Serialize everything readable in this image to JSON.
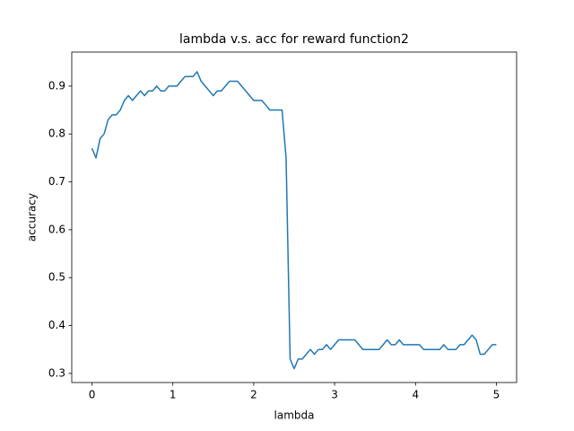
{
  "chart_data": {
    "type": "line",
    "title": "lambda v.s. acc for reward function2",
    "x_label": "lambda",
    "y_label": "accuracy",
    "x": [
      0,
      0.05,
      0.1,
      0.15,
      0.2,
      0.25,
      0.3,
      0.35,
      0.4,
      0.45,
      0.5,
      0.55,
      0.6,
      0.65,
      0.7,
      0.75,
      0.8,
      0.85,
      0.9,
      0.95,
      1,
      1.05,
      1.1,
      1.15,
      1.2,
      1.25,
      1.3,
      1.35,
      1.4,
      1.45,
      1.5,
      1.55,
      1.6,
      1.65,
      1.7,
      1.75,
      1.8,
      1.85,
      1.9,
      1.95,
      2,
      2.05,
      2.1,
      2.15,
      2.2,
      2.25,
      2.3,
      2.35,
      2.4,
      2.45,
      2.5,
      2.55,
      2.6,
      2.65,
      2.7,
      2.75,
      2.8,
      2.85,
      2.9,
      2.95,
      3,
      3.05,
      3.1,
      3.15,
      3.2,
      3.25,
      3.3,
      3.35,
      3.4,
      3.45,
      3.5,
      3.55,
      3.6,
      3.65,
      3.7,
      3.75,
      3.8,
      3.85,
      3.9,
      3.95,
      4,
      4.05,
      4.1,
      4.15,
      4.2,
      4.25,
      4.3,
      4.35,
      4.4,
      4.45,
      4.5,
      4.55,
      4.6,
      4.65,
      4.7,
      4.75,
      4.8,
      4.85,
      4.9,
      4.95,
      5
    ],
    "series": [
      {
        "name": "accuracy",
        "color": "#1f77b4",
        "values": [
          0.77,
          0.75,
          0.79,
          0.8,
          0.83,
          0.84,
          0.84,
          0.85,
          0.87,
          0.88,
          0.87,
          0.88,
          0.89,
          0.88,
          0.89,
          0.89,
          0.9,
          0.89,
          0.89,
          0.9,
          0.9,
          0.9,
          0.91,
          0.92,
          0.92,
          0.92,
          0.93,
          0.91,
          0.9,
          0.89,
          0.88,
          0.89,
          0.89,
          0.9,
          0.91,
          0.91,
          0.91,
          0.9,
          0.89,
          0.88,
          0.87,
          0.87,
          0.87,
          0.86,
          0.85,
          0.85,
          0.85,
          0.85,
          0.75,
          0.33,
          0.31,
          0.33,
          0.33,
          0.34,
          0.35,
          0.34,
          0.35,
          0.35,
          0.36,
          0.35,
          0.36,
          0.37,
          0.37,
          0.37,
          0.37,
          0.37,
          0.36,
          0.35,
          0.35,
          0.35,
          0.35,
          0.35,
          0.36,
          0.37,
          0.36,
          0.36,
          0.37,
          0.36,
          0.36,
          0.36,
          0.36,
          0.36,
          0.35,
          0.35,
          0.35,
          0.35,
          0.35,
          0.36,
          0.35,
          0.35,
          0.35,
          0.36,
          0.36,
          0.37,
          0.38,
          0.37,
          0.34,
          0.34,
          0.35,
          0.36,
          0.36
        ]
      }
    ],
    "xlim": [
      -0.25,
      5.25
    ],
    "xticks": [
      0,
      1,
      2,
      3,
      4,
      5
    ],
    "ylim": [
      0.281,
      0.971
    ],
    "yticks": [
      0.3,
      0.4,
      0.5,
      0.6,
      0.7,
      0.8,
      0.9
    ]
  }
}
